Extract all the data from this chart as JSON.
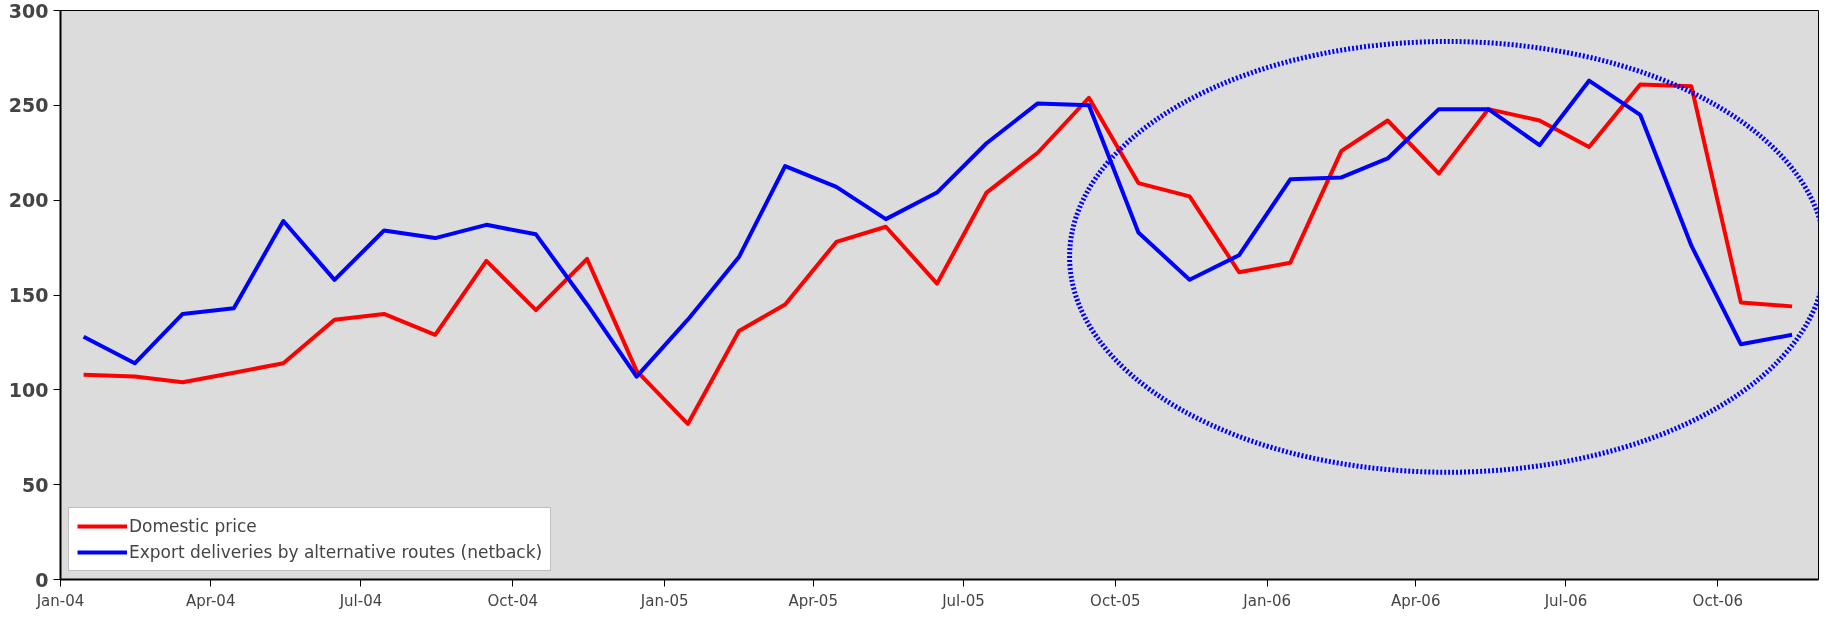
{
  "chart_data": {
    "type": "line",
    "x": [
      "2004-01-15",
      "2004-02-15",
      "2004-03-15",
      "2004-04-15",
      "2004-05-15",
      "2004-06-15",
      "2004-07-15",
      "2004-08-15",
      "2004-09-15",
      "2004-10-15",
      "2004-11-15",
      "2004-12-15",
      "2005-01-15",
      "2005-02-15",
      "2005-03-15",
      "2005-04-15",
      "2005-05-15",
      "2005-06-15",
      "2005-07-15",
      "2005-08-15",
      "2005-09-15",
      "2005-10-15",
      "2005-11-15",
      "2005-12-15",
      "2006-01-15",
      "2006-02-15",
      "2006-03-15",
      "2006-04-15",
      "2006-05-15",
      "2006-06-15",
      "2006-07-15",
      "2006-08-15",
      "2006-09-15",
      "2006-10-15",
      "2006-11-15"
    ],
    "series": [
      {
        "name": "Domestic price",
        "color": "#ff0000",
        "values": [
          108,
          107,
          104,
          109,
          114,
          137,
          140,
          129,
          168,
          142,
          169,
          110,
          82,
          131,
          145,
          178,
          186,
          156,
          204,
          225,
          254,
          209,
          202,
          162,
          167,
          226,
          242,
          214,
          248,
          242,
          228,
          261,
          260,
          146,
          144
        ]
      },
      {
        "name": "Export deliveries by alternative routes (netback)",
        "color": "#0000ff",
        "values": [
          128,
          114,
          140,
          143,
          189,
          158,
          184,
          180,
          187,
          182,
          145,
          107,
          137,
          170,
          218,
          207,
          190,
          204,
          230,
          251,
          250,
          183,
          158,
          171,
          211,
          212,
          222,
          248,
          248,
          229,
          263,
          245,
          176,
          124,
          129
        ]
      }
    ],
    "xlim": [
      "2004-01-01",
      "2006-12-01"
    ],
    "xticks": [
      {
        "value": "2004-01-01",
        "label": "Jan-04"
      },
      {
        "value": "2004-04-01",
        "label": "Apr-04"
      },
      {
        "value": "2004-07-01",
        "label": "Jul-04"
      },
      {
        "value": "2004-10-01",
        "label": "Oct-04"
      },
      {
        "value": "2005-01-01",
        "label": "Jan-05"
      },
      {
        "value": "2005-04-01",
        "label": "Apr-05"
      },
      {
        "value": "2005-07-01",
        "label": "Jul-05"
      },
      {
        "value": "2005-10-01",
        "label": "Oct-05"
      },
      {
        "value": "2006-01-01",
        "label": "Jan-06"
      },
      {
        "value": "2006-04-01",
        "label": "Apr-06"
      },
      {
        "value": "2006-07-01",
        "label": "Jul-06"
      },
      {
        "value": "2006-10-01",
        "label": "Oct-06"
      }
    ],
    "ylim": [
      0,
      300
    ],
    "yticks": [
      0,
      50,
      100,
      150,
      200,
      250,
      300
    ],
    "grid": false,
    "legend": "bottom left",
    "line_style": "solid",
    "marker": "none"
  }
}
